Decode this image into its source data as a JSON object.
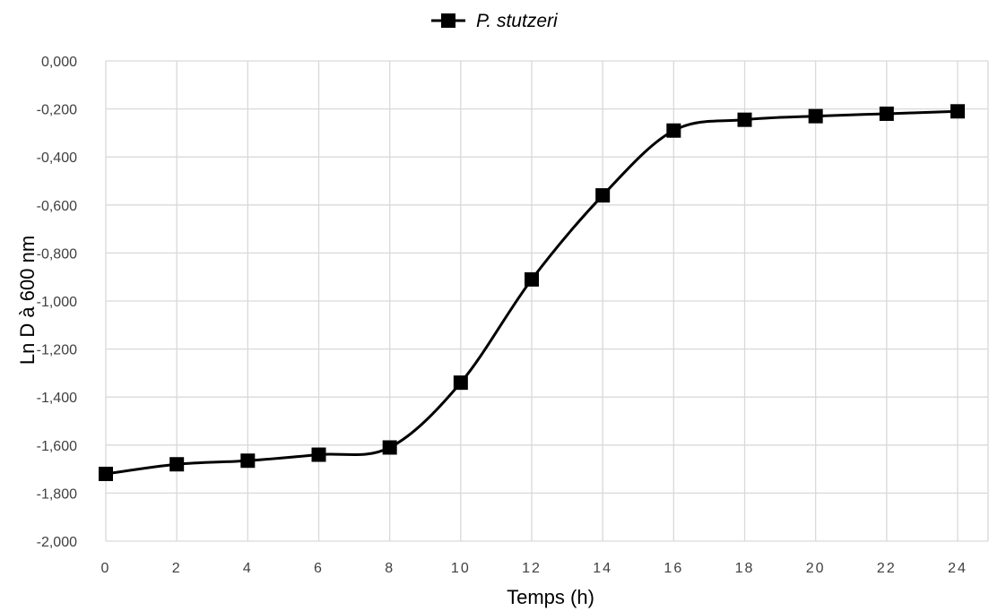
{
  "chart_data": {
    "type": "line",
    "xlabel": "Temps (h)",
    "ylabel": "Ln D à 600 nm",
    "xlim": [
      0,
      24
    ],
    "ylim": [
      -2.0,
      0.0
    ],
    "x_ticks": [
      "0",
      "2",
      "4",
      "6",
      "8",
      "10",
      "12",
      "14",
      "16",
      "18",
      "20",
      "22",
      "24"
    ],
    "y_ticks": [
      "0,000",
      "-0,200",
      "-0,400",
      "-0,600",
      "-0,800",
      "-1,000",
      "-1,200",
      "-1,400",
      "-1,600",
      "-1,800",
      "-2,000"
    ],
    "grid": true,
    "legend_position": "top-center",
    "series": [
      {
        "name": "P. stutzeri",
        "color": "#000000",
        "marker": "square",
        "smooth": true,
        "x": [
          0,
          2,
          4,
          6,
          8,
          10,
          12,
          14,
          16,
          18,
          20,
          22,
          24
        ],
        "y": [
          -1.72,
          -1.68,
          -1.665,
          -1.64,
          -1.61,
          -1.34,
          -0.91,
          -0.56,
          -0.29,
          -0.245,
          -0.23,
          -0.22,
          -0.21
        ]
      }
    ]
  }
}
